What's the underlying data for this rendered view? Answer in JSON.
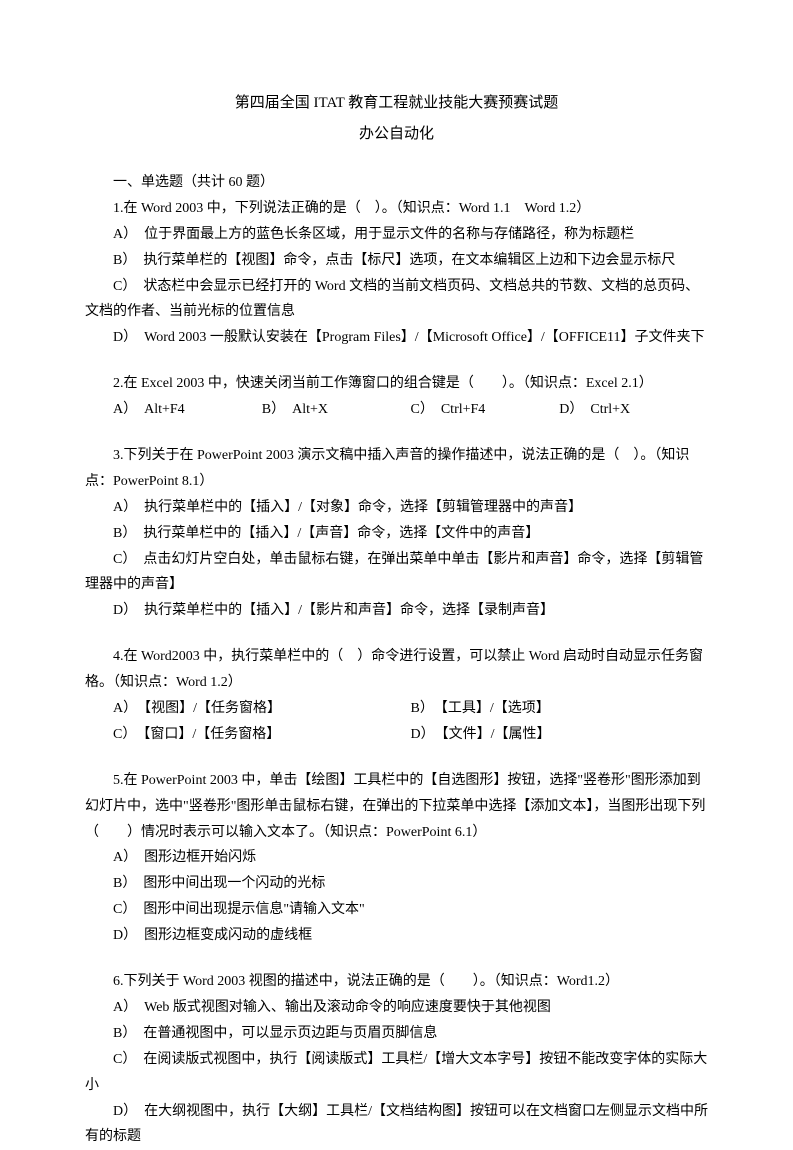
{
  "colors": {
    "text": "#000000",
    "background": "#ffffff"
  },
  "typography": {
    "font_family": "SimSun",
    "body_fontsize": 14,
    "title_fontsize": 15,
    "line_height": 1.85
  },
  "title": "第四届全国 ITAT 教育工程就业技能大赛预赛试题",
  "subtitle": "办公自动化",
  "section_header": "一、单选题（共计 60 题）",
  "q1": {
    "stem": "1.在 Word 2003 中，下列说法正确的是（　）。（知识点：Word 1.1　Word 1.2）",
    "a": "A）　位于界面最上方的蓝色长条区域，用于显示文件的名称与存储路径，称为标题栏",
    "b": "B）　执行菜单栏的【视图】命令，点击【标尺】选项，在文本编辑区上边和下边会显示标尺",
    "c": "C）　状态栏中会显示已经打开的 Word 文档的当前文档页码、文档总共的节数、文档的总页码、文档的作者、当前光标的位置信息",
    "d": "D）　Word 2003 一般默认安装在【Program Files】/【Microsoft Office】/【OFFICE11】子文件夹下"
  },
  "q2": {
    "stem": "2.在 Excel 2003 中，快速关闭当前工作簿窗口的组合键是（　　）。（知识点：Excel 2.1）",
    "a": "A）　Alt+F4",
    "b": "B）　Alt+X",
    "c": "C）　Ctrl+F4",
    "d": "D）　Ctrl+X"
  },
  "q3": {
    "stem": "3.下列关于在 PowerPoint 2003 演示文稿中插入声音的操作描述中，说法正确的是（　）。（知识点：PowerPoint 8.1）",
    "a": "A）　执行菜单栏中的【插入】/【对象】命令，选择【剪辑管理器中的声音】",
    "b": "B）　执行菜单栏中的【插入】/【声音】命令，选择【文件中的声音】",
    "c": "C）　点击幻灯片空白处，单击鼠标右键，在弹出菜单中单击【影片和声音】命令，选择【剪辑管理器中的声音】",
    "d": "D）　执行菜单栏中的【插入】/【影片和声音】命令，选择【录制声音】"
  },
  "q4": {
    "stem": "4.在 Word2003 中，执行菜单栏中的（　）命令进行设置，可以禁止 Word 启动时自动显示任务窗格。（知识点：Word 1.2）",
    "a": "A）　【视图】/【任务窗格】",
    "b": "B）　【工具】/【选项】",
    "c": "C）　【窗口】/【任务窗格】",
    "d": "D）　【文件】/【属性】"
  },
  "q5": {
    "stem": "5.在 PowerPoint 2003 中，单击【绘图】工具栏中的【自选图形】按钮，选择\"竖卷形\"图形添加到幻灯片中，选中\"竖卷形\"图形单击鼠标右键，在弹出的下拉菜单中选择【添加文本】，当图形出现下列（　　）情况时表示可以输入文本了。（知识点：PowerPoint 6.1）",
    "a": "A）　图形边框开始闪烁",
    "b": "B）　图形中间出现一个闪动的光标",
    "c": "C）　图形中间出现提示信息\"请输入文本\"",
    "d": "D）　图形边框变成闪动的虚线框"
  },
  "q6": {
    "stem": "6.下列关于 Word 2003 视图的描述中，说法正确的是（　　）。（知识点：Word1.2）",
    "a": "A）　Web 版式视图对输入、输出及滚动命令的响应速度要快于其他视图",
    "b": "B）　在普通视图中，可以显示页边距与页眉页脚信息",
    "c": "C）　在阅读版式视图中，执行【阅读版式】工具栏/【增大文本字号】按钮不能改变字体的实际大小",
    "d": "D）　在大纲视图中，执行【大纲】工具栏/【文档结构图】按钮可以在文档窗口左侧显示文档中所有的标题"
  }
}
